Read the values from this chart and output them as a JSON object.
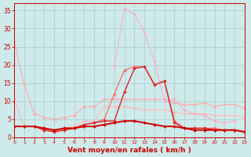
{
  "xlabel": "Vent moyen/en rafales ( km/h )",
  "ylim": [
    0,
    37
  ],
  "xlim": [
    0,
    23
  ],
  "background_color": "#ceeaea",
  "grid_color": "#aacccc",
  "series": [
    {
      "label": "s_lightest_pink_high",
      "color": "#ffaaaa",
      "linewidth": 0.8,
      "markersize": 1.8,
      "y": [
        26.5,
        14.5,
        6.5,
        5.5,
        5.0,
        5.5,
        6.0,
        8.5,
        8.5,
        10.5,
        10.5,
        10.5,
        10.5,
        10.5,
        10.5,
        10.5,
        9.5,
        9.0,
        9.0,
        9.5,
        8.5,
        9.0,
        9.0,
        8.0
      ]
    },
    {
      "label": "s_light_pink_medium",
      "color": "#ffbbbb",
      "linewidth": 0.8,
      "markersize": 1.8,
      "y": [
        10.5,
        3.0,
        3.0,
        2.0,
        2.0,
        2.5,
        3.0,
        4.5,
        4.5,
        8.5,
        8.5,
        8.5,
        8.0,
        7.5,
        7.5,
        7.5,
        7.0,
        6.5,
        6.5,
        6.5,
        6.0,
        6.0,
        6.0,
        5.5
      ]
    },
    {
      "label": "s_pink_bump",
      "color": "#ffaacc",
      "linewidth": 0.8,
      "markersize": 1.8,
      "y": [
        null,
        null,
        null,
        null,
        null,
        null,
        null,
        null,
        null,
        null,
        19.5,
        35.5,
        34.0,
        29.0,
        21.0,
        10.0,
        10.5,
        7.5,
        6.5,
        6.0,
        4.5,
        4.0,
        4.5,
        null
      ]
    },
    {
      "label": "s_medium_red",
      "color": "#ff6666",
      "linewidth": 0.9,
      "markersize": 1.8,
      "y": [
        3.0,
        3.0,
        3.0,
        2.0,
        1.5,
        2.0,
        2.5,
        3.5,
        4.0,
        5.0,
        12.0,
        18.5,
        19.5,
        19.5,
        14.5,
        15.5,
        4.5,
        2.5,
        2.5,
        2.5,
        2.5,
        2.0,
        2.0,
        1.5
      ]
    },
    {
      "label": "s_darkred_peak",
      "color": "#dd2222",
      "linewidth": 1.0,
      "markersize": 1.8,
      "y": [
        3.0,
        3.0,
        3.0,
        2.0,
        1.5,
        2.0,
        2.5,
        3.5,
        4.0,
        4.5,
        4.5,
        12.5,
        19.0,
        19.5,
        14.5,
        15.5,
        4.0,
        2.5,
        2.5,
        2.5,
        2.0,
        2.0,
        2.0,
        1.5
      ]
    },
    {
      "label": "s_darkest_flat",
      "color": "#cc0000",
      "linewidth": 1.4,
      "markersize": 2.0,
      "y": [
        3.0,
        3.0,
        3.0,
        2.5,
        2.0,
        2.5,
        2.5,
        3.0,
        3.0,
        3.5,
        4.0,
        4.5,
        4.5,
        4.0,
        3.5,
        3.0,
        3.0,
        2.5,
        2.0,
        2.0,
        2.0,
        2.0,
        2.0,
        1.5
      ]
    }
  ],
  "xticks": [
    0,
    1,
    2,
    3,
    4,
    5,
    6,
    7,
    8,
    9,
    10,
    11,
    12,
    13,
    14,
    15,
    16,
    17,
    18,
    19,
    20,
    21,
    22,
    23
  ],
  "yticks": [
    0,
    5,
    10,
    15,
    20,
    25,
    30,
    35
  ],
  "tick_color": "#cc0000",
  "axis_color": "#cc0000",
  "label_color": "#cc0000",
  "label_fontsize": 6.5,
  "tick_fontsize": 5.5,
  "xtick_fontsize": 4.5
}
